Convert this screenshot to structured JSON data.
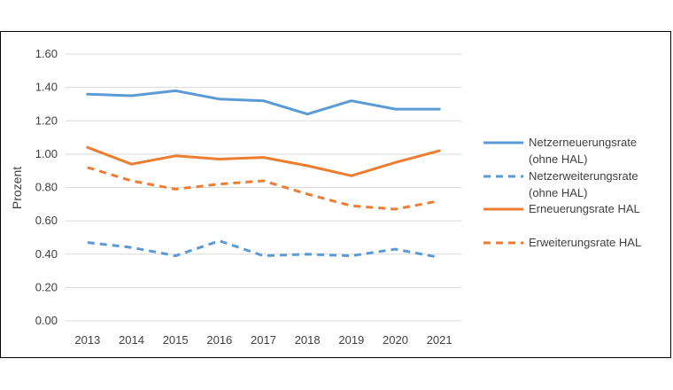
{
  "chart_data": {
    "type": "line",
    "title": "",
    "xlabel": "",
    "ylabel": "Prozent",
    "ylim": [
      0,
      1.6
    ],
    "yticks": [
      "0.00",
      "0.20",
      "0.40",
      "0.60",
      "0.80",
      "1.00",
      "1.20",
      "1.40",
      "1.60"
    ],
    "tick_values": [
      0,
      0.2,
      0.4,
      0.6,
      0.8,
      1.0,
      1.2,
      1.4,
      1.6
    ],
    "categories": [
      "2013",
      "2014",
      "2015",
      "2016",
      "2017",
      "2018",
      "2019",
      "2020",
      "2021"
    ],
    "grid": true,
    "legend_position": "right",
    "series": [
      {
        "name": "Netzerneuerungsrate",
        "name_line2": "(ohne HAL)",
        "color": "#5b9bd5",
        "dashed": false,
        "values": [
          1.36,
          1.35,
          1.38,
          1.33,
          1.32,
          1.24,
          1.32,
          1.27,
          1.27
        ]
      },
      {
        "name": "Netzerweiterungsrate",
        "name_line2": "(ohne HAL)",
        "color": "#5b9bd5",
        "dashed": true,
        "values": [
          0.47,
          0.44,
          0.39,
          0.48,
          0.39,
          0.4,
          0.39,
          0.43,
          0.38
        ]
      },
      {
        "name": "Erneuerungsrate HAL",
        "name_line2": "",
        "color": "#ed7d31",
        "dashed": false,
        "values": [
          1.04,
          0.94,
          0.99,
          0.97,
          0.98,
          0.93,
          0.87,
          0.95,
          1.02
        ]
      },
      {
        "name": "Erweiterungsrate HAL",
        "name_line2": "",
        "color": "#ed7d31",
        "dashed": true,
        "values": [
          0.92,
          0.84,
          0.79,
          0.82,
          0.84,
          0.76,
          0.69,
          0.67,
          0.72
        ]
      }
    ]
  }
}
